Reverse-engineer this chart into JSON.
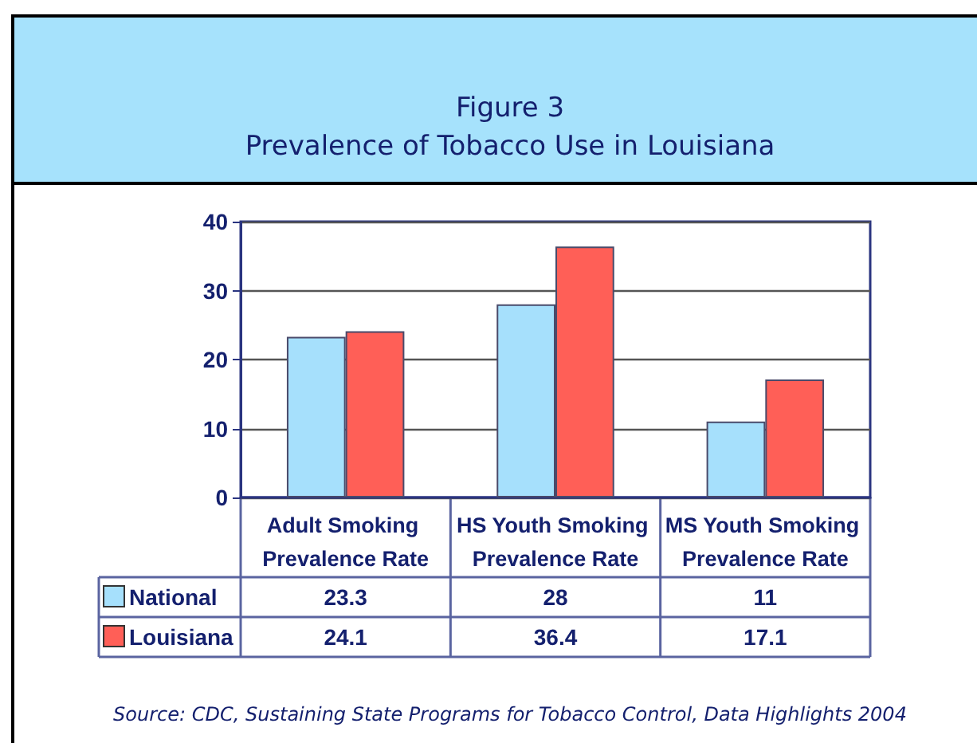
{
  "chart_data": {
    "type": "bar",
    "title": "Figure 3",
    "subtitle": "Prevalence of Tobacco Use in Louisiana",
    "categories": [
      "Adult Smoking Prevalence Rate",
      "HS Youth Smoking Prevalence Rate",
      "MS Youth Smoking Prevalence Rate"
    ],
    "series": [
      {
        "name": "National",
        "color": "#a6e0fc",
        "values": [
          23.3,
          28,
          11
        ]
      },
      {
        "name": "Louisiana",
        "color": "#ff5f57",
        "values": [
          24.1,
          36.4,
          17.1
        ]
      }
    ],
    "ylim": [
      0,
      40
    ],
    "yticks": [
      0,
      10,
      20,
      30,
      40
    ],
    "grid": "y",
    "legend": "bottom",
    "data_labels": true,
    "annotations": [
      "Source: CDC, Sustaining State Programs for Tobacco Control, Data Highlights 2004"
    ]
  }
}
